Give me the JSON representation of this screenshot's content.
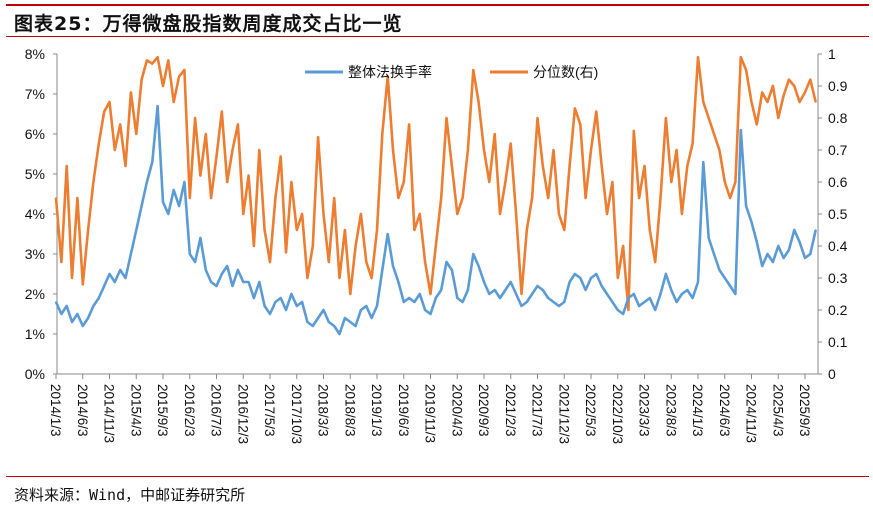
{
  "title": "图表25：万得微盘股指数周度成交占比一览",
  "source": "资料来源：Wind，中邮证券研究所",
  "colors": {
    "turnover": "#5b9bd5",
    "percentile": "#ed7d31",
    "rule": "#c00000"
  },
  "chart_data": {
    "type": "line",
    "title": "",
    "legend_position": "top-center",
    "grid": false,
    "x_start": "2014/1",
    "x_end": "2025/11",
    "x_frequency": "monthly (approximate of weekly series)",
    "x_tick_labels": [
      "2014/1/3",
      "2014/6/3",
      "2014/11/3",
      "2015/4/3",
      "2015/9/3",
      "2016/2/3",
      "2016/7/3",
      "2016/12/3",
      "2017/5/3",
      "2017/10/3",
      "2018/3/3",
      "2018/8/3",
      "2019/1/3",
      "2019/6/3",
      "2019/11/3",
      "2020/4/3",
      "2020/9/3",
      "2021/2/3",
      "2021/7/3",
      "2021/12/3",
      "2022/5/3",
      "2022/10/3",
      "2023/3/3",
      "2023/8/3",
      "2024/1/3",
      "2024/6/3",
      "2024/11/3",
      "2025/4/3",
      "2025/9/3"
    ],
    "y_left": {
      "ylim": [
        0,
        8
      ],
      "unit": "%",
      "tick_labels": [
        "0%",
        "1%",
        "2%",
        "3%",
        "4%",
        "5%",
        "6%",
        "7%",
        "8%"
      ]
    },
    "y_right": {
      "ylim": [
        0,
        1
      ],
      "tick_labels": [
        "0",
        "0.1",
        "0.2",
        "0.3",
        "0.4",
        "0.5",
        "0.6",
        "0.7",
        "0.8",
        "0.9",
        "1"
      ]
    },
    "series": [
      {
        "name": "整体法换手率",
        "axis": "left",
        "values": [
          1.8,
          1.5,
          1.7,
          1.3,
          1.5,
          1.2,
          1.4,
          1.7,
          1.9,
          2.2,
          2.5,
          2.3,
          2.6,
          2.4,
          3.0,
          3.6,
          4.2,
          4.8,
          5.3,
          6.7,
          4.3,
          4.0,
          4.6,
          4.2,
          4.8,
          3.0,
          2.8,
          3.4,
          2.6,
          2.3,
          2.2,
          2.5,
          2.7,
          2.2,
          2.6,
          2.3,
          2.3,
          1.9,
          2.3,
          1.7,
          1.5,
          1.8,
          1.9,
          1.6,
          2.0,
          1.7,
          1.8,
          1.3,
          1.2,
          1.4,
          1.6,
          1.3,
          1.2,
          1.0,
          1.4,
          1.3,
          1.2,
          1.6,
          1.7,
          1.4,
          1.7,
          2.6,
          3.5,
          2.7,
          2.3,
          1.8,
          1.9,
          1.8,
          2.0,
          1.6,
          1.5,
          1.9,
          2.1,
          2.8,
          2.6,
          1.9,
          1.8,
          2.1,
          3.0,
          2.7,
          2.3,
          2.0,
          2.1,
          1.9,
          2.1,
          2.3,
          2.0,
          1.7,
          1.8,
          2.0,
          2.2,
          2.1,
          1.9,
          1.8,
          1.7,
          1.8,
          2.3,
          2.5,
          2.4,
          2.1,
          2.4,
          2.5,
          2.2,
          2.0,
          1.8,
          1.6,
          1.5,
          1.9,
          2.0,
          1.7,
          1.8,
          1.9,
          1.6,
          2.0,
          2.5,
          2.1,
          1.8,
          2.0,
          2.1,
          1.9,
          2.3,
          5.3,
          3.4,
          3.0,
          2.6,
          2.4,
          2.2,
          2.0,
          6.1,
          4.2,
          3.8,
          3.3,
          2.7,
          3.0,
          2.8,
          3.2,
          2.9,
          3.1,
          3.6,
          3.3,
          2.9,
          3.0,
          3.6
        ]
      },
      {
        "name": "分位数(右)",
        "axis": "right",
        "values": [
          0.55,
          0.35,
          0.65,
          0.3,
          0.55,
          0.28,
          0.45,
          0.6,
          0.72,
          0.82,
          0.85,
          0.7,
          0.78,
          0.65,
          0.88,
          0.75,
          0.92,
          0.98,
          0.97,
          0.99,
          0.9,
          0.98,
          0.85,
          0.93,
          0.95,
          0.55,
          0.8,
          0.62,
          0.75,
          0.55,
          0.68,
          0.82,
          0.6,
          0.7,
          0.78,
          0.5,
          0.62,
          0.4,
          0.7,
          0.45,
          0.35,
          0.55,
          0.68,
          0.38,
          0.6,
          0.45,
          0.5,
          0.3,
          0.4,
          0.74,
          0.5,
          0.35,
          0.55,
          0.3,
          0.45,
          0.25,
          0.4,
          0.5,
          0.35,
          0.3,
          0.45,
          0.75,
          0.93,
          0.7,
          0.55,
          0.6,
          0.78,
          0.45,
          0.5,
          0.35,
          0.25,
          0.4,
          0.55,
          0.8,
          0.65,
          0.5,
          0.55,
          0.7,
          0.95,
          0.85,
          0.7,
          0.6,
          0.75,
          0.5,
          0.6,
          0.72,
          0.5,
          0.25,
          0.45,
          0.55,
          0.8,
          0.65,
          0.55,
          0.7,
          0.5,
          0.45,
          0.65,
          0.83,
          0.78,
          0.55,
          0.7,
          0.82,
          0.65,
          0.5,
          0.6,
          0.3,
          0.4,
          0.2,
          0.76,
          0.55,
          0.65,
          0.45,
          0.35,
          0.55,
          0.8,
          0.6,
          0.7,
          0.5,
          0.65,
          0.72,
          0.99,
          0.85,
          0.8,
          0.75,
          0.7,
          0.6,
          0.55,
          0.6,
          0.99,
          0.95,
          0.85,
          0.78,
          0.88,
          0.85,
          0.9,
          0.8,
          0.87,
          0.92,
          0.9,
          0.85,
          0.88,
          0.92,
          0.85
        ]
      }
    ]
  }
}
